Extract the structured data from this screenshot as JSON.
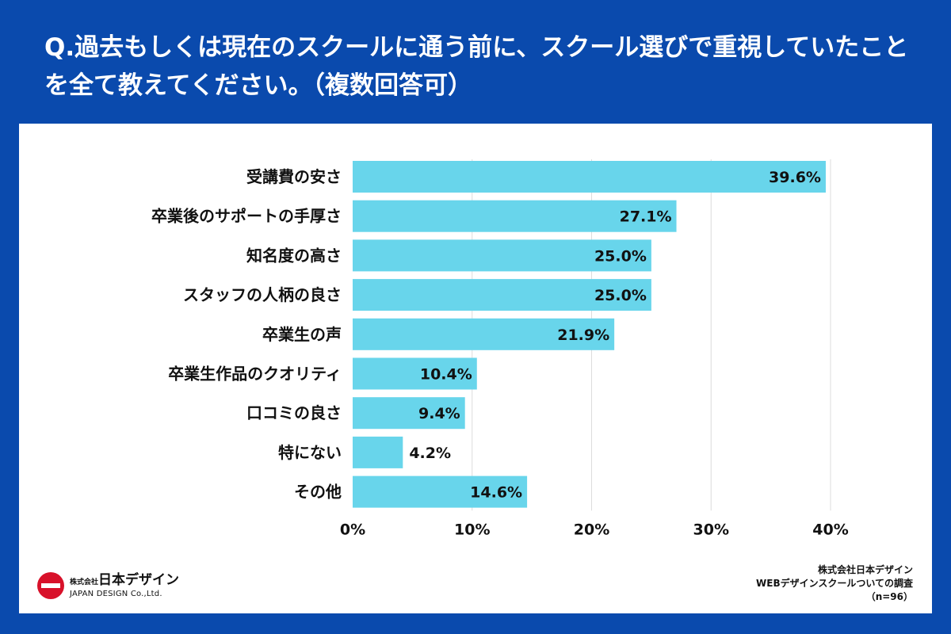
{
  "title": "Q.過去もしくは現在のスクールに通う前に、スクール選びで重視していたことを全て教えてください。（複数回答可）",
  "colors": {
    "background": "#0a4aad",
    "bar": "#68d5eb",
    "grid": "#dcdcdc"
  },
  "chart_data": {
    "type": "bar",
    "orientation": "horizontal",
    "categories": [
      "受講費の安さ",
      "卒業後のサポートの手厚さ",
      "知名度の高さ",
      "スタッフの人柄の良さ",
      "卒業生の声",
      "卒業生作品のクオリティ",
      "口コミの良さ",
      "特にない",
      "その他"
    ],
    "values": [
      39.6,
      27.1,
      25.0,
      25.0,
      21.9,
      10.4,
      9.4,
      4.2,
      14.6
    ],
    "value_labels": [
      "39.6%",
      "27.1%",
      "25.0%",
      "25.0%",
      "21.9%",
      "10.4%",
      "9.4%",
      "4.2%",
      "14.6%"
    ],
    "xlim": [
      0,
      40
    ],
    "xticks": [
      0,
      10,
      20,
      30,
      40
    ],
    "xtick_labels": [
      "0%",
      "10%",
      "20%",
      "30%",
      "40%"
    ],
    "grid": true
  },
  "logo": {
    "top_small": "株式会社",
    "top": "日本デザイン",
    "bottom": "JAPAN DESIGN Co.,Ltd."
  },
  "source": {
    "company": "株式会社日本デザイン",
    "survey": "WEBデザインスクールついての調査",
    "n": "（n=96）"
  }
}
